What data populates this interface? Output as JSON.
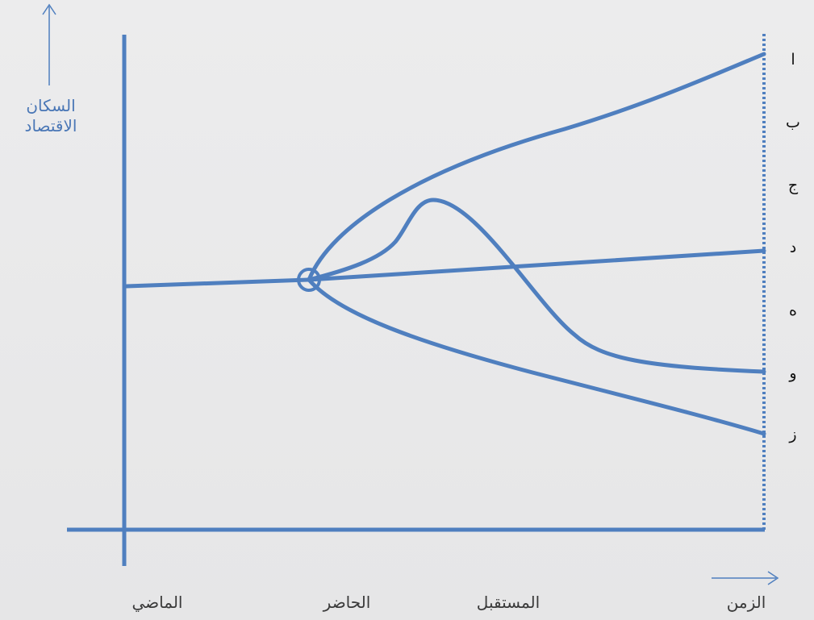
{
  "y_axis": {
    "label_line1": "السكان",
    "label_line2": "الاقتصاد"
  },
  "x_axis": {
    "label": "الزمن",
    "ticks": [
      "الماضي",
      "الحاضر",
      "المستقبل"
    ]
  },
  "scenarios": [
    "ا",
    "ب",
    "ج",
    "د",
    "ه",
    "و",
    "ز"
  ],
  "colors": {
    "line": "#4f7fbf",
    "axis_label": "#4a77b6",
    "text": "#111111"
  }
}
